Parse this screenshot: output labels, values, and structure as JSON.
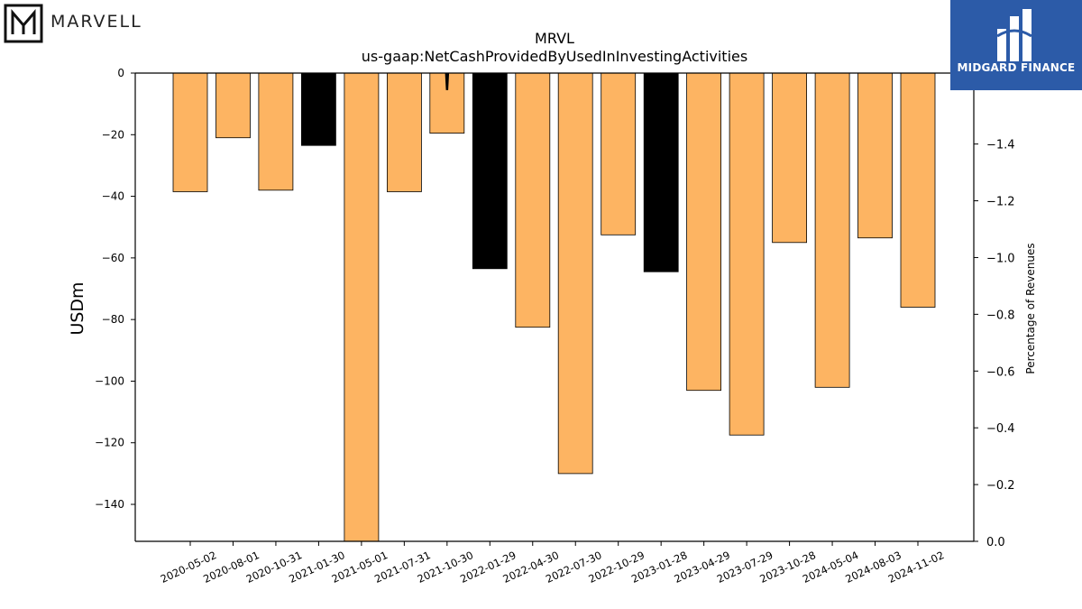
{
  "logos": {
    "left_text": "MARVELL",
    "right_text": "MIDGARD FINANCE"
  },
  "chart_data": {
    "type": "bar",
    "title": "MRVL",
    "subtitle": "us-gaap:NetCashProvidedByUsedInInvestingActivities",
    "ylabel": "USDm",
    "y2label": "Percentage of Revenues",
    "ylim": [
      -152,
      0
    ],
    "y2lim": [
      0,
      -1.65
    ],
    "yticks": [
      0,
      -20,
      -40,
      -60,
      -80,
      -100,
      -120,
      -140
    ],
    "y2ticks": [
      0.0,
      -0.2,
      -0.4,
      -0.6,
      -0.8,
      -1.0,
      -1.2,
      -1.4
    ],
    "categories": [
      "2020-05-02",
      "2020-08-01",
      "2020-10-31",
      "2021-01-30",
      "2021-05-01",
      "2021-07-31",
      "2021-10-30",
      "2022-01-29",
      "2022-04-30",
      "2022-07-30",
      "2022-10-29",
      "2023-01-28",
      "2023-04-29",
      "2023-07-29",
      "2023-10-28",
      "2024-05-04",
      "2024-08-03",
      "2024-11-02"
    ],
    "values": [
      -38.5,
      -21,
      -38,
      -23.5,
      -152,
      -38.5,
      -19.5,
      -63.5,
      -82.5,
      -130,
      -52.5,
      -64.5,
      -103,
      -117.5,
      -55,
      -102,
      -53.5,
      -76
    ],
    "bar_colors": [
      "#fdb462",
      "#fdb462",
      "#fdb462",
      "#000000",
      "#fdb462",
      "#fdb462",
      "#fdb462",
      "#000000",
      "#fdb462",
      "#fdb462",
      "#fdb462",
      "#000000",
      "#fdb462",
      "#fdb462",
      "#fdb462",
      "#fdb462",
      "#fdb462",
      "#fdb462"
    ],
    "secondary_line": {
      "category": "2021-10-30",
      "value_top": 0,
      "value_bottom": -5.5
    },
    "grid": false
  }
}
